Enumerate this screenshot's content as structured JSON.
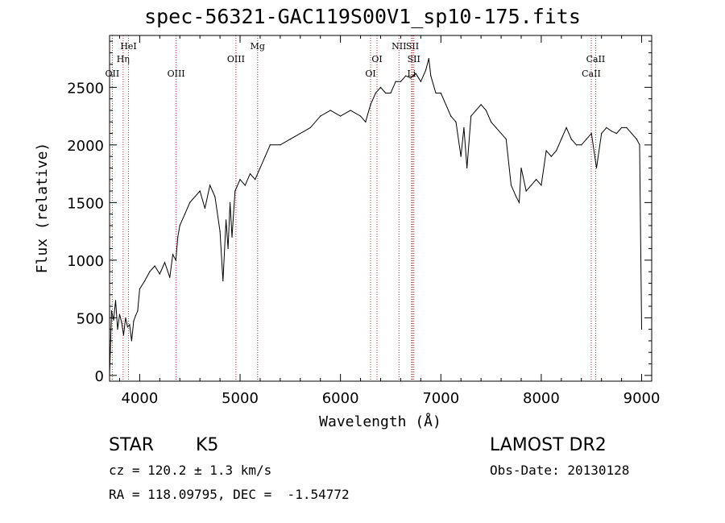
{
  "title": "spec-56321-GAC119S00V1_sp10-175.fits",
  "chart_data": {
    "type": "line",
    "xlabel": "Wavelength (Å)",
    "ylabel": "Flux (relative)",
    "xlim": [
      3700,
      9100
    ],
    "ylim": [
      -50,
      2950
    ],
    "xticks": [
      4000,
      5000,
      6000,
      7000,
      8000,
      9000
    ],
    "yticks": [
      0,
      500,
      1000,
      1500,
      2000,
      2500
    ],
    "grid": false,
    "line_color": "#000000",
    "marker_color": "#b22222",
    "series": [
      {
        "x": [
          3700,
          3720,
          3740,
          3760,
          3780,
          3800,
          3820,
          3840,
          3860,
          3880,
          3900,
          3920,
          3940,
          3960,
          3980,
          4000,
          4050,
          4100,
          4150,
          4200,
          4250,
          4300,
          4330,
          4360,
          4380,
          4400,
          4450,
          4500,
          4550,
          4600,
          4650,
          4700,
          4750,
          4800,
          4830,
          4860,
          4880,
          4900,
          4920,
          4950,
          5000,
          5050,
          5100,
          5150,
          5200,
          5250,
          5300,
          5400,
          5500,
          5600,
          5700,
          5800,
          5900,
          6000,
          6100,
          6200,
          6250,
          6300,
          6350,
          6400,
          6450,
          6500,
          6550,
          6600,
          6650,
          6700,
          6750,
          6800,
          6850,
          6880,
          6900,
          6950,
          7000,
          7050,
          7100,
          7150,
          7200,
          7230,
          7260,
          7300,
          7350,
          7400,
          7450,
          7500,
          7550,
          7600,
          7650,
          7700,
          7750,
          7780,
          7800,
          7850,
          7900,
          7950,
          8000,
          8050,
          8100,
          8150,
          8200,
          8250,
          8300,
          8350,
          8400,
          8450,
          8500,
          8550,
          8600,
          8650,
          8700,
          8750,
          8800,
          8850,
          8900,
          8950,
          8980,
          9000
        ],
        "y": [
          0,
          560,
          480,
          650,
          400,
          530,
          460,
          350,
          500,
          420,
          440,
          300,
          470,
          520,
          560,
          750,
          820,
          900,
          950,
          880,
          980,
          850,
          1050,
          1000,
          1200,
          1300,
          1400,
          1500,
          1550,
          1600,
          1450,
          1650,
          1550,
          1250,
          820,
          1350,
          1100,
          1500,
          1200,
          1600,
          1700,
          1650,
          1750,
          1700,
          1800,
          1900,
          2000,
          2000,
          2050,
          2100,
          2150,
          2250,
          2300,
          2250,
          2300,
          2250,
          2200,
          2350,
          2450,
          2500,
          2450,
          2450,
          2550,
          2550,
          2600,
          2580,
          2620,
          2550,
          2650,
          2750,
          2600,
          2450,
          2450,
          2350,
          2250,
          2200,
          1900,
          2150,
          1800,
          2250,
          2300,
          2350,
          2300,
          2200,
          2150,
          2100,
          2050,
          1650,
          1550,
          1500,
          1800,
          1600,
          1650,
          1700,
          1650,
          1950,
          1900,
          1950,
          2050,
          2150,
          2050,
          2000,
          2000,
          2050,
          2100,
          1800,
          2100,
          2150,
          2120,
          2100,
          2150,
          2150,
          2100,
          2050,
          2000,
          400
        ]
      }
    ],
    "lines": [
      {
        "label": "OII",
        "x": 3727,
        "row": 3
      },
      {
        "label": "Hη",
        "x": 3835,
        "row": 2
      },
      {
        "label": "HeI",
        "x": 3889,
        "row": 1
      },
      {
        "label": "OIII",
        "x": 4363,
        "row": 3
      },
      {
        "label": "OIII",
        "x": 4959,
        "row": 2
      },
      {
        "label": "Mg",
        "x": 5175,
        "row": 1
      },
      {
        "label": "OI",
        "x": 6300,
        "row": 3
      },
      {
        "label": "OI",
        "x": 6364,
        "row": 2
      },
      {
        "label": "NII",
        "x": 6583,
        "row": 1
      },
      {
        "label": "SII",
        "x": 6717,
        "row": 1
      },
      {
        "label": "SII",
        "x": 6731,
        "row": 2
      },
      {
        "label": "Li",
        "x": 6708,
        "row": 3
      },
      {
        "label": "CaII",
        "x": 8498,
        "row": 3
      },
      {
        "label": "CaII",
        "x": 8542,
        "row": 2
      }
    ]
  },
  "info": {
    "class_label": "STAR",
    "subclass_label": "K5",
    "survey_label": "LAMOST DR2",
    "cz": "cz = 120.2 ± 1.3 km/s",
    "obs_date": "Obs-Date: 20130128",
    "coords": "RA = 118.09795, DEC =  -1.54772"
  }
}
